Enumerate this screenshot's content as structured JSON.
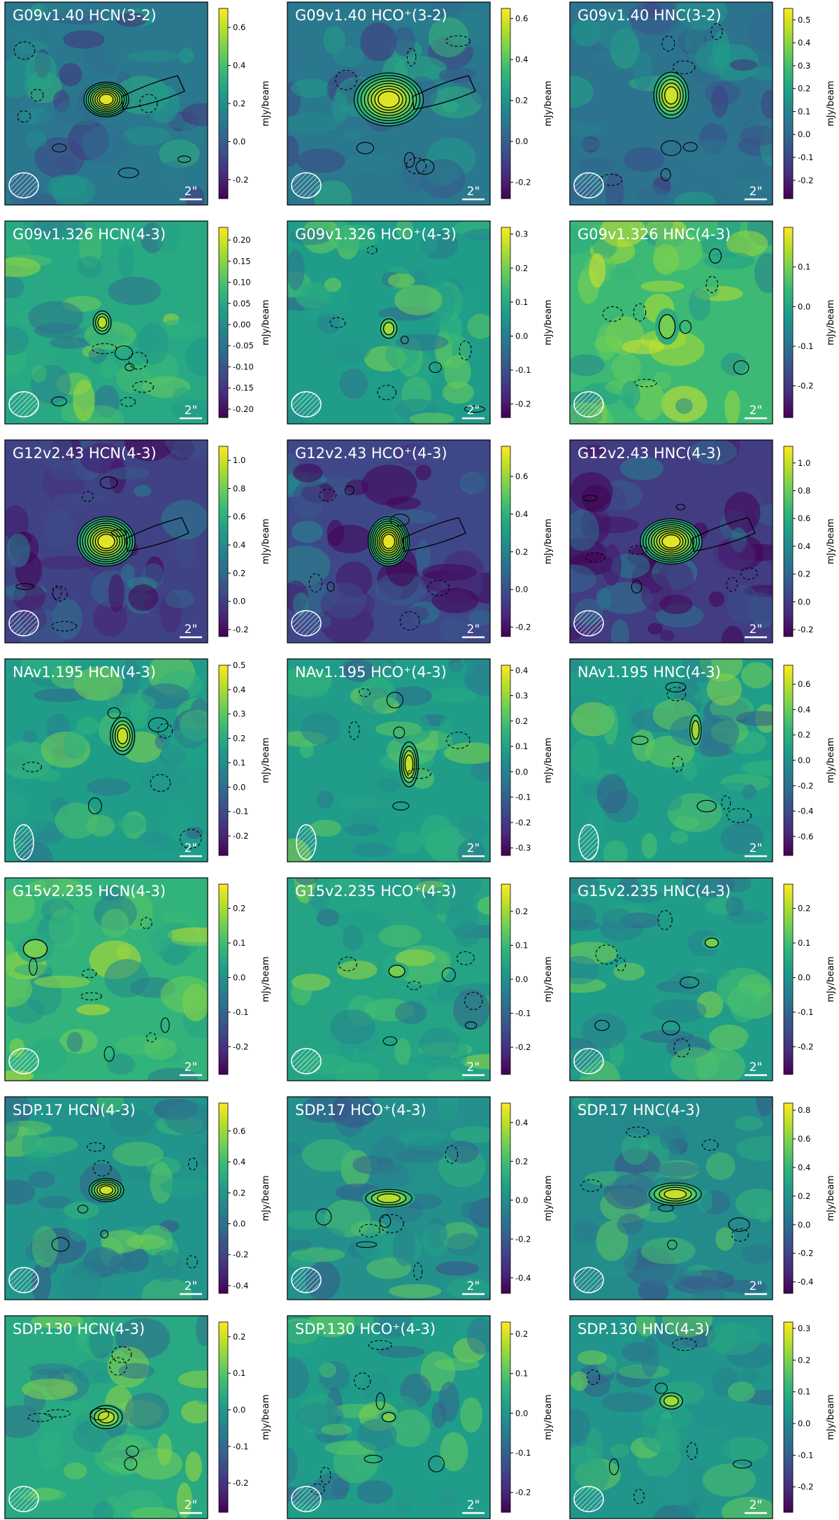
{
  "figure": {
    "colorbar_label": "mJy/beam",
    "scalebar_label": "2\"",
    "colormap": [
      "#440154",
      "#482878",
      "#3e4989",
      "#31688e",
      "#26828e",
      "#1f9e89",
      "#35b779",
      "#6ece58",
      "#b5de2b",
      "#fde725"
    ],
    "contour_color": "#000000",
    "beam_color": "#ffffff"
  },
  "chart_data": [
    {
      "type": "heatmap",
      "title": "G09v1.40 HCN(3-2)",
      "cbar": {
        "ticks": [
          "0.6",
          "0.4",
          "0.2",
          "0.0",
          "-0.2"
        ],
        "range": [
          -0.3,
          0.7
        ]
      },
      "peak": 0.68
    },
    {
      "type": "heatmap",
      "title": "G09v1.40 HCO⁺(3-2)",
      "cbar": {
        "ticks": [
          "0.6",
          "0.4",
          "0.2",
          "0.0",
          "-0.2"
        ],
        "range": [
          -0.28,
          0.65
        ]
      },
      "peak": 0.63
    },
    {
      "type": "heatmap",
      "title": "G09v1.40 HNC(3-2)",
      "cbar": {
        "ticks": [
          "0.5",
          "0.4",
          "0.3",
          "0.2",
          "0.1",
          "0.0",
          "-0.1",
          "-0.2"
        ],
        "range": [
          -0.28,
          0.55
        ]
      },
      "peak": 0.52
    },
    {
      "type": "heatmap",
      "title": "G09v1.326 HCN(4-3)",
      "cbar": {
        "ticks": [
          "0.20",
          "0.15",
          "0.10",
          "0.05",
          "0.00",
          "-0.05",
          "-0.10",
          "-0.15",
          "-0.20"
        ],
        "range": [
          -0.22,
          0.23
        ]
      },
      "peak": 0.22
    },
    {
      "type": "heatmap",
      "title": "G09v1.326 HCO⁺(4-3)",
      "cbar": {
        "ticks": [
          "0.3",
          "0.2",
          "0.1",
          "0.0",
          "-0.1",
          "-0.2"
        ],
        "range": [
          -0.24,
          0.32
        ]
      },
      "peak": 0.3
    },
    {
      "type": "heatmap",
      "title": "G09v1.326 HNC(4-3)",
      "cbar": {
        "ticks": [
          "0.1",
          "0.0",
          "-0.1",
          "-0.2"
        ],
        "range": [
          -0.28,
          0.2
        ]
      },
      "peak": 0.18
    },
    {
      "type": "heatmap",
      "title": "G12v2.43 HCN(4-3)",
      "cbar": {
        "ticks": [
          "1.0",
          "0.8",
          "0.6",
          "0.4",
          "0.2",
          "0.0",
          "-0.2"
        ],
        "range": [
          -0.25,
          1.1
        ]
      },
      "peak": 1.08
    },
    {
      "type": "heatmap",
      "title": "G12v2.43 HCO⁺(4-3)",
      "cbar": {
        "ticks": [
          "0.6",
          "0.4",
          "0.2",
          "0.0",
          "-0.2"
        ],
        "range": [
          -0.25,
          0.76
        ]
      },
      "peak": 0.74
    },
    {
      "type": "heatmap",
      "title": "G12v2.43 HNC(4-3)",
      "cbar": {
        "ticks": [
          "1.0",
          "0.8",
          "0.6",
          "0.4",
          "0.2",
          "0.0",
          "-0.2"
        ],
        "range": [
          -0.25,
          1.12
        ]
      },
      "peak": 1.1
    },
    {
      "type": "heatmap",
      "title": "NAv1.195 HCN(4-3)",
      "cbar": {
        "ticks": [
          "0.5",
          "0.4",
          "0.3",
          "0.2",
          "0.1",
          "0.0",
          "-0.1",
          "-0.2"
        ],
        "range": [
          -0.28,
          0.5
        ]
      },
      "peak": 0.48
    },
    {
      "type": "heatmap",
      "title": "NAv1.195 HCO⁺(4-3)",
      "cbar": {
        "ticks": [
          "0.4",
          "0.3",
          "0.2",
          "0.1",
          "0.0",
          "-0.1",
          "-0.2",
          "-0.3"
        ],
        "range": [
          -0.33,
          0.42
        ]
      },
      "peak": 0.4
    },
    {
      "type": "heatmap",
      "title": "NAv1.195 HNC(4-3)",
      "cbar": {
        "ticks": [
          "0.6",
          "0.4",
          "0.2",
          "0.0",
          "-0.2",
          "-0.4",
          "-0.6"
        ],
        "range": [
          -0.75,
          0.75
        ]
      },
      "peak": 0.72
    },
    {
      "type": "heatmap",
      "title": "G15v2.235 HCN(4-3)",
      "cbar": {
        "ticks": [
          "0.2",
          "0.1",
          "0.0",
          "-0.1",
          "-0.2"
        ],
        "range": [
          -0.28,
          0.27
        ]
      },
      "peak": 0.25
    },
    {
      "type": "heatmap",
      "title": "G15v2.235 HCO⁺(4-3)",
      "cbar": {
        "ticks": [
          "0.2",
          "0.1",
          "0.0",
          "-0.1",
          "-0.2"
        ],
        "range": [
          -0.28,
          0.28
        ]
      },
      "peak": 0.25
    },
    {
      "type": "heatmap",
      "title": "G15v2.235 HNC(4-3)",
      "cbar": {
        "ticks": [
          "0.2",
          "0.1",
          "0.0",
          "-0.1",
          "-0.2"
        ],
        "range": [
          -0.28,
          0.27
        ]
      },
      "peak": 0.25
    },
    {
      "type": "heatmap",
      "title": "SDP.17 HCN(4-3)",
      "cbar": {
        "ticks": [
          "0.6",
          "0.4",
          "0.2",
          "0.0",
          "-0.2",
          "-0.4"
        ],
        "range": [
          -0.45,
          0.78
        ]
      },
      "peak": 0.76
    },
    {
      "type": "heatmap",
      "title": "SDP.17 HCO⁺(4-3)",
      "cbar": {
        "ticks": [
          "0.4",
          "0.2",
          "0.0",
          "-0.2",
          "-0.4"
        ],
        "range": [
          -0.48,
          0.5
        ]
      },
      "peak": 0.48
    },
    {
      "type": "heatmap",
      "title": "SDP.17 HNC(4-3)",
      "cbar": {
        "ticks": [
          "0.8",
          "0.6",
          "0.4",
          "0.2",
          "0.0",
          "-0.2",
          "-0.4"
        ],
        "range": [
          -0.48,
          0.85
        ]
      },
      "peak": 0.83
    },
    {
      "type": "heatmap",
      "title": "SDP.130 HCN(4-3)",
      "cbar": {
        "ticks": [
          "0.2",
          "0.1",
          "0.0",
          "-0.1",
          "-0.2"
        ],
        "range": [
          -0.28,
          0.24
        ]
      },
      "peak": 0.22
    },
    {
      "type": "heatmap",
      "title": "SDP.130 HCO⁺(4-3)",
      "cbar": {
        "ticks": [
          "0.2",
          "0.1",
          "0.0",
          "-0.1",
          "-0.2"
        ],
        "range": [
          -0.25,
          0.23
        ]
      },
      "peak": 0.21
    },
    {
      "type": "heatmap",
      "title": "SDP.130 HNC(4-3)",
      "cbar": {
        "ticks": [
          "0.3",
          "0.2",
          "0.1",
          "0.0",
          "-0.1",
          "-0.2"
        ],
        "range": [
          -0.28,
          0.32
        ]
      },
      "peak": 0.3
    }
  ]
}
